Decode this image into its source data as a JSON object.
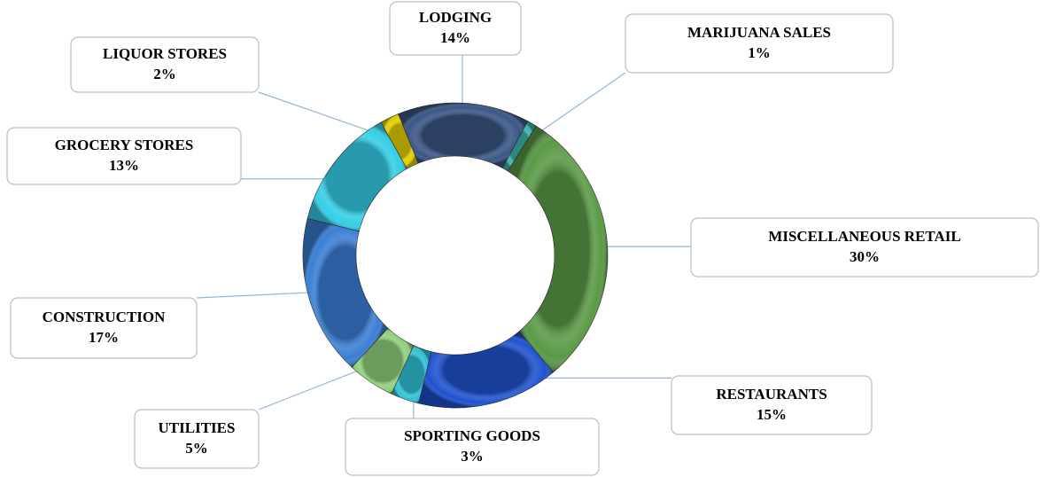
{
  "chart_data": {
    "type": "donut",
    "categories": [
      "LODGING",
      "MARIJUANA SALES",
      "MISCELLANEOUS RETAIL",
      "RESTAURANTS",
      "SPORTING GOODS",
      "UTILITIES",
      "CONSTRUCTION",
      "GROCERY STORES",
      "LIQUOR STORES"
    ],
    "values": [
      14,
      1,
      30,
      15,
      3,
      5,
      17,
      13,
      2
    ],
    "value_labels": [
      "14%",
      "1%",
      "30%",
      "15%",
      "3%",
      "5%",
      "17%",
      "13%",
      "2%"
    ],
    "colors": [
      "#3a5686",
      "#3db3ad",
      "#5a9a46",
      "#1f52cf",
      "#30c2d6",
      "#90d07c",
      "#3a7fd6",
      "#34cfe6",
      "#e2cf00"
    ]
  }
}
